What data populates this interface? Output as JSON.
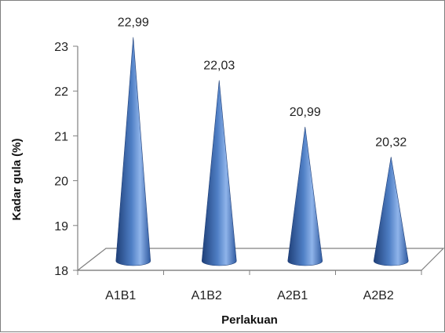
{
  "chart_data": {
    "type": "bar",
    "shape": "cone",
    "style": "3d",
    "categories": [
      "A1B1",
      "A1B2",
      "A2B1",
      "A2B2"
    ],
    "values": [
      22.99,
      22.03,
      20.99,
      20.32
    ],
    "data_labels": [
      "22,99",
      "22,03",
      "20,99",
      "20,32"
    ],
    "xlabel": "Perlakuan",
    "ylabel": "Kadar gula (%)",
    "ylim": [
      18,
      23
    ],
    "yticks": [
      18,
      19,
      20,
      21,
      22,
      23
    ],
    "ytick_labels": [
      "18",
      "19",
      "20",
      "21",
      "22",
      "23"
    ],
    "grid": false,
    "legend": "none",
    "colors": {
      "cone_dark": "#1f3f78",
      "cone_mid": "#4f7fc5",
      "cone_light": "#8fb4ea",
      "floor_line": "#808080"
    }
  }
}
